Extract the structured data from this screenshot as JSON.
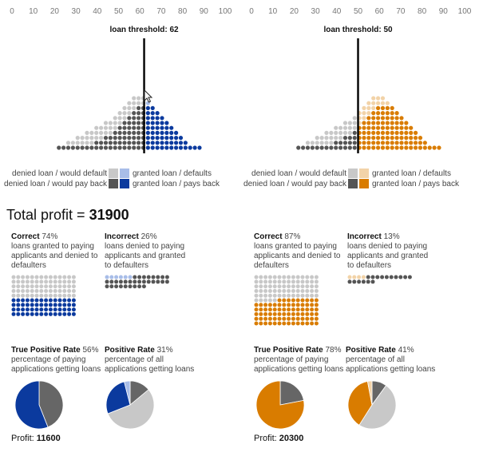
{
  "axis_ticks": [
    "0",
    "10",
    "20",
    "30",
    "40",
    "50",
    "60",
    "70",
    "80",
    "90",
    "100"
  ],
  "total_profit": {
    "label": "Total profit = ",
    "value": "31900"
  },
  "legend": {
    "denied_default": "denied loan / would default",
    "denied_payback": "denied loan / would pay back",
    "granted_default": "granted loan / defaults",
    "granted_payback": "granted loan / pays back"
  },
  "panels": [
    {
      "id": "left",
      "threshold_label": "loan threshold: 62",
      "threshold": 62,
      "colors": {
        "payback": "#0b3a9e",
        "default": "#a8bde8",
        "denied_payback": "#555555",
        "denied_default": "#c8c8c8"
      },
      "correct": {
        "title": "Correct",
        "pct": "74%",
        "desc": "loans granted to paying applicants and denied to defaulters"
      },
      "incorrect": {
        "title": "Incorrect",
        "pct": "26%",
        "desc": "loans denied to paying applicants and granted to defaulters"
      },
      "tpr": {
        "title": "True Positive Rate",
        "pct": "56%",
        "desc": "percentage of paying applications getting loans",
        "value": 0.56
      },
      "pr": {
        "title": "Positive Rate",
        "pct": "31%",
        "desc": "percentage of all applications getting loans",
        "value": 0.31
      },
      "profit": {
        "label": "Profit: ",
        "value": "11600"
      }
    },
    {
      "id": "right",
      "threshold_label": "loan threshold: 50",
      "threshold": 50,
      "colors": {
        "payback": "#d97c00",
        "default": "#f2d3a8",
        "denied_payback": "#555555",
        "denied_default": "#c8c8c8"
      },
      "correct": {
        "title": "Correct",
        "pct": "87%",
        "desc": "loans granted to paying applicants and denied to defaulters"
      },
      "incorrect": {
        "title": "Incorrect",
        "pct": "13%",
        "desc": "loans denied to paying applicants and granted to defaulters"
      },
      "tpr": {
        "title": "True Positive Rate",
        "pct": "78%",
        "desc": "percentage of paying applications getting loans",
        "value": 0.78
      },
      "pr": {
        "title": "Positive Rate",
        "pct": "41%",
        "desc": "percentage of all applications getting loans",
        "value": 0.41
      },
      "profit": {
        "label": "Profit: ",
        "value": "20300"
      }
    }
  ]
}
